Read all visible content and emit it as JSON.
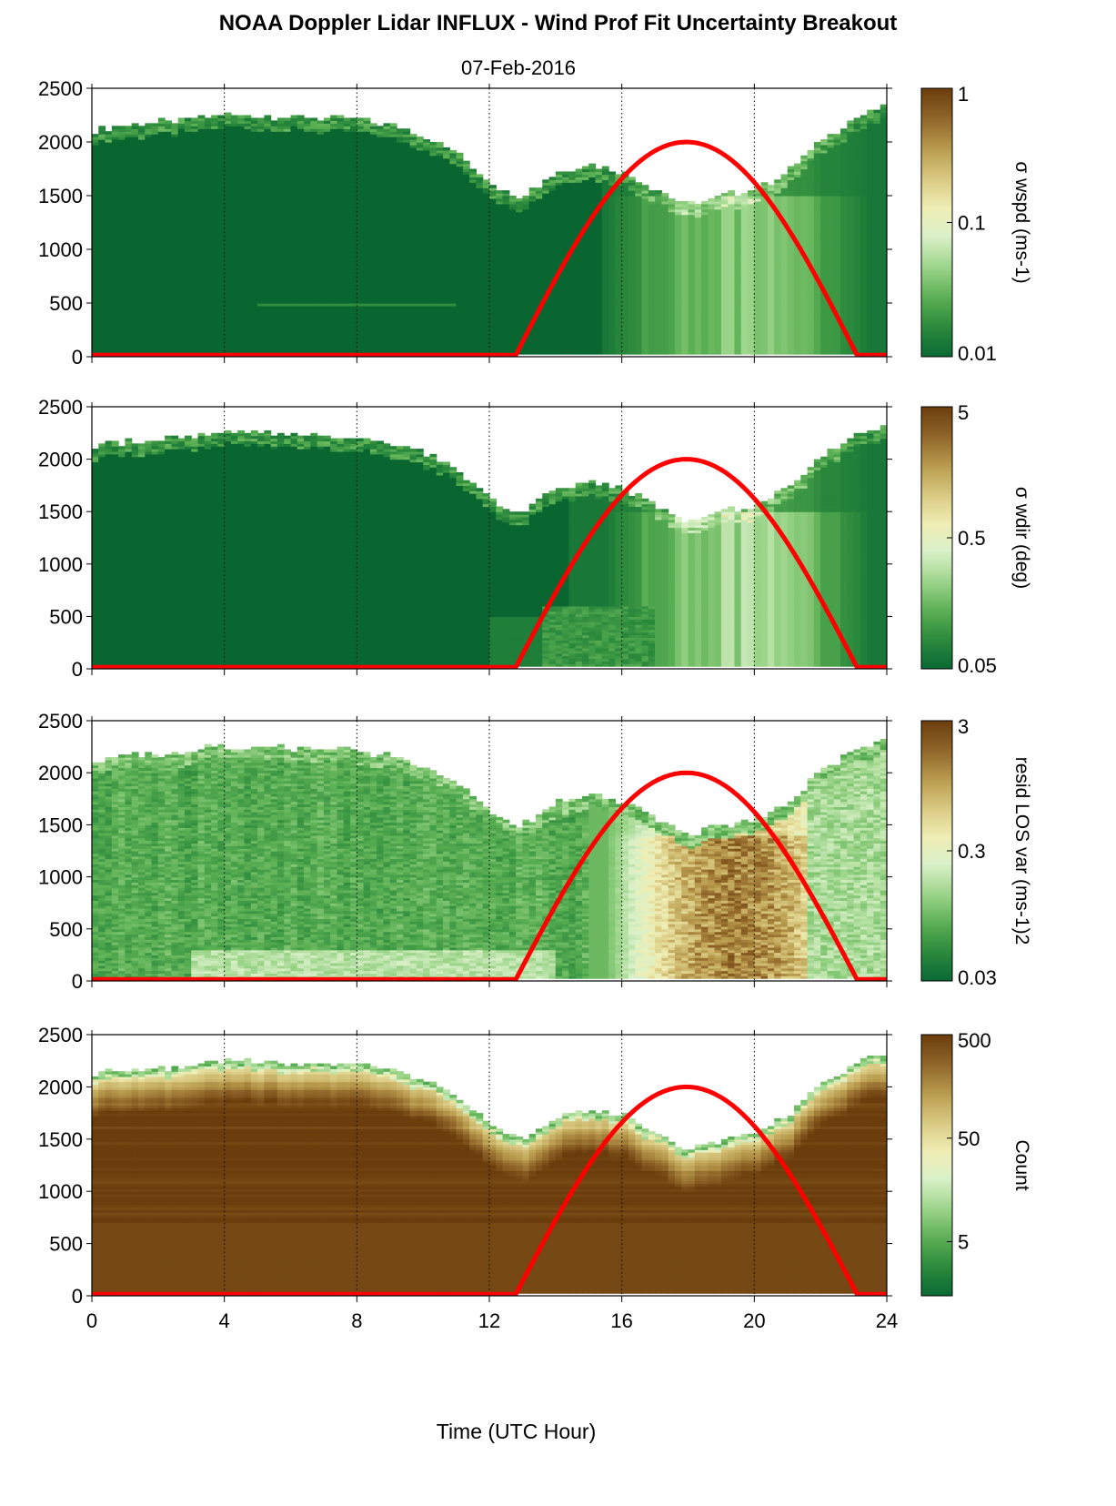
{
  "figure": {
    "title": "NOAA Doppler Lidar INFLUX - Wind Prof Fit Uncertainty Breakout",
    "subtitle": "07-Feb-2016",
    "xlabel": "Time (UTC Hour)"
  },
  "colors": {
    "colormap": [
      "#0b6a35",
      "#2b8a3c",
      "#5cb054",
      "#9cd58a",
      "#d9f0c8",
      "#f0eeb4",
      "#d8c880",
      "#b89a4c",
      "#8f6428",
      "#6b3d0c"
    ],
    "below_min": "#0a6631",
    "sun_curve": "#ff0000",
    "axis": "#000000"
  },
  "chart_data": [
    {
      "type": "heatmap",
      "panel": "wspd",
      "x": [
        0,
        24
      ],
      "xticks": [
        0,
        4,
        8,
        12,
        16,
        20,
        24
      ],
      "xgrid": [
        4,
        8,
        12,
        16,
        20
      ],
      "ylim": [
        0,
        2500
      ],
      "yticks": [
        0,
        500,
        1000,
        1500,
        2000,
        2500
      ],
      "colorbar": {
        "scale": "log",
        "range": [
          0.01,
          1
        ],
        "ticks": [
          0.01,
          0.1,
          1
        ],
        "ticklabels": [
          "0.01",
          "0.1",
          "1"
        ],
        "label": "σ wspd (ms-1)"
      },
      "top_height_profile": [
        [
          0,
          2100
        ],
        [
          1,
          2150
        ],
        [
          2,
          2170
        ],
        [
          3,
          2200
        ],
        [
          4,
          2250
        ],
        [
          5,
          2230
        ],
        [
          6,
          2220
        ],
        [
          7,
          2210
        ],
        [
          8,
          2200
        ],
        [
          9,
          2150
        ],
        [
          10,
          2050
        ],
        [
          11,
          1900
        ],
        [
          12,
          1620
        ],
        [
          12.5,
          1520
        ],
        [
          13,
          1480
        ],
        [
          14,
          1700
        ],
        [
          15,
          1780
        ],
        [
          16,
          1720
        ],
        [
          17,
          1550
        ],
        [
          18,
          1400
        ],
        [
          19,
          1480
        ],
        [
          20,
          1550
        ],
        [
          21,
          1700
        ],
        [
          22,
          2000
        ],
        [
          23,
          2200
        ],
        [
          23.8,
          2300
        ]
      ],
      "sun_elevation_curve": {
        "rise_hour": 12.8,
        "set_hour": 23.1,
        "peak_hour": 18,
        "peak_height": 2000
      }
    },
    {
      "type": "heatmap",
      "panel": "wdir",
      "x": [
        0,
        24
      ],
      "xticks": [
        0,
        4,
        8,
        12,
        16,
        20,
        24
      ],
      "xgrid": [
        4,
        8,
        12,
        16,
        20
      ],
      "ylim": [
        0,
        2500
      ],
      "yticks": [
        0,
        500,
        1000,
        1500,
        2000,
        2500
      ],
      "colorbar": {
        "scale": "log",
        "range": [
          0.05,
          5
        ],
        "ticks": [
          0.05,
          0.5,
          5
        ],
        "ticklabels": [
          "0.05",
          "0.5",
          "5"
        ],
        "label": "σ wdir (deg)"
      },
      "sun_elevation_curve": {
        "rise_hour": 12.8,
        "set_hour": 23.1,
        "peak_hour": 18,
        "peak_height": 2000
      }
    },
    {
      "type": "heatmap",
      "panel": "resid",
      "x": [
        0,
        24
      ],
      "xticks": [
        0,
        4,
        8,
        12,
        16,
        20,
        24
      ],
      "xgrid": [
        4,
        8,
        12,
        16,
        20
      ],
      "ylim": [
        0,
        2500
      ],
      "yticks": [
        0,
        500,
        1000,
        1500,
        2000,
        2500
      ],
      "colorbar": {
        "scale": "log",
        "range": [
          0.03,
          3
        ],
        "ticks": [
          0.03,
          0.3,
          3
        ],
        "ticklabels": [
          "0.03",
          "0.3",
          "3"
        ],
        "label": "resid LOS var (ms-1)2"
      },
      "sun_elevation_curve": {
        "rise_hour": 12.8,
        "set_hour": 23.1,
        "peak_hour": 18,
        "peak_height": 2000
      }
    },
    {
      "type": "heatmap",
      "panel": "count",
      "x": [
        0,
        24
      ],
      "xticks": [
        0,
        4,
        8,
        12,
        16,
        20,
        24
      ],
      "xgrid": [
        4,
        8,
        12,
        16,
        20
      ],
      "ylim": [
        0,
        2500
      ],
      "yticks": [
        0,
        500,
        1000,
        1500,
        2000,
        2500
      ],
      "colorbar": {
        "scale": "log",
        "range": [
          1.5,
          500
        ],
        "ticks": [
          5,
          50,
          500
        ],
        "ticklabels": [
          "5",
          "50",
          "500"
        ],
        "label": "Count"
      },
      "sun_elevation_curve": {
        "rise_hour": 12.8,
        "set_hour": 23.1,
        "peak_hour": 18,
        "peak_height": 2000
      }
    }
  ]
}
